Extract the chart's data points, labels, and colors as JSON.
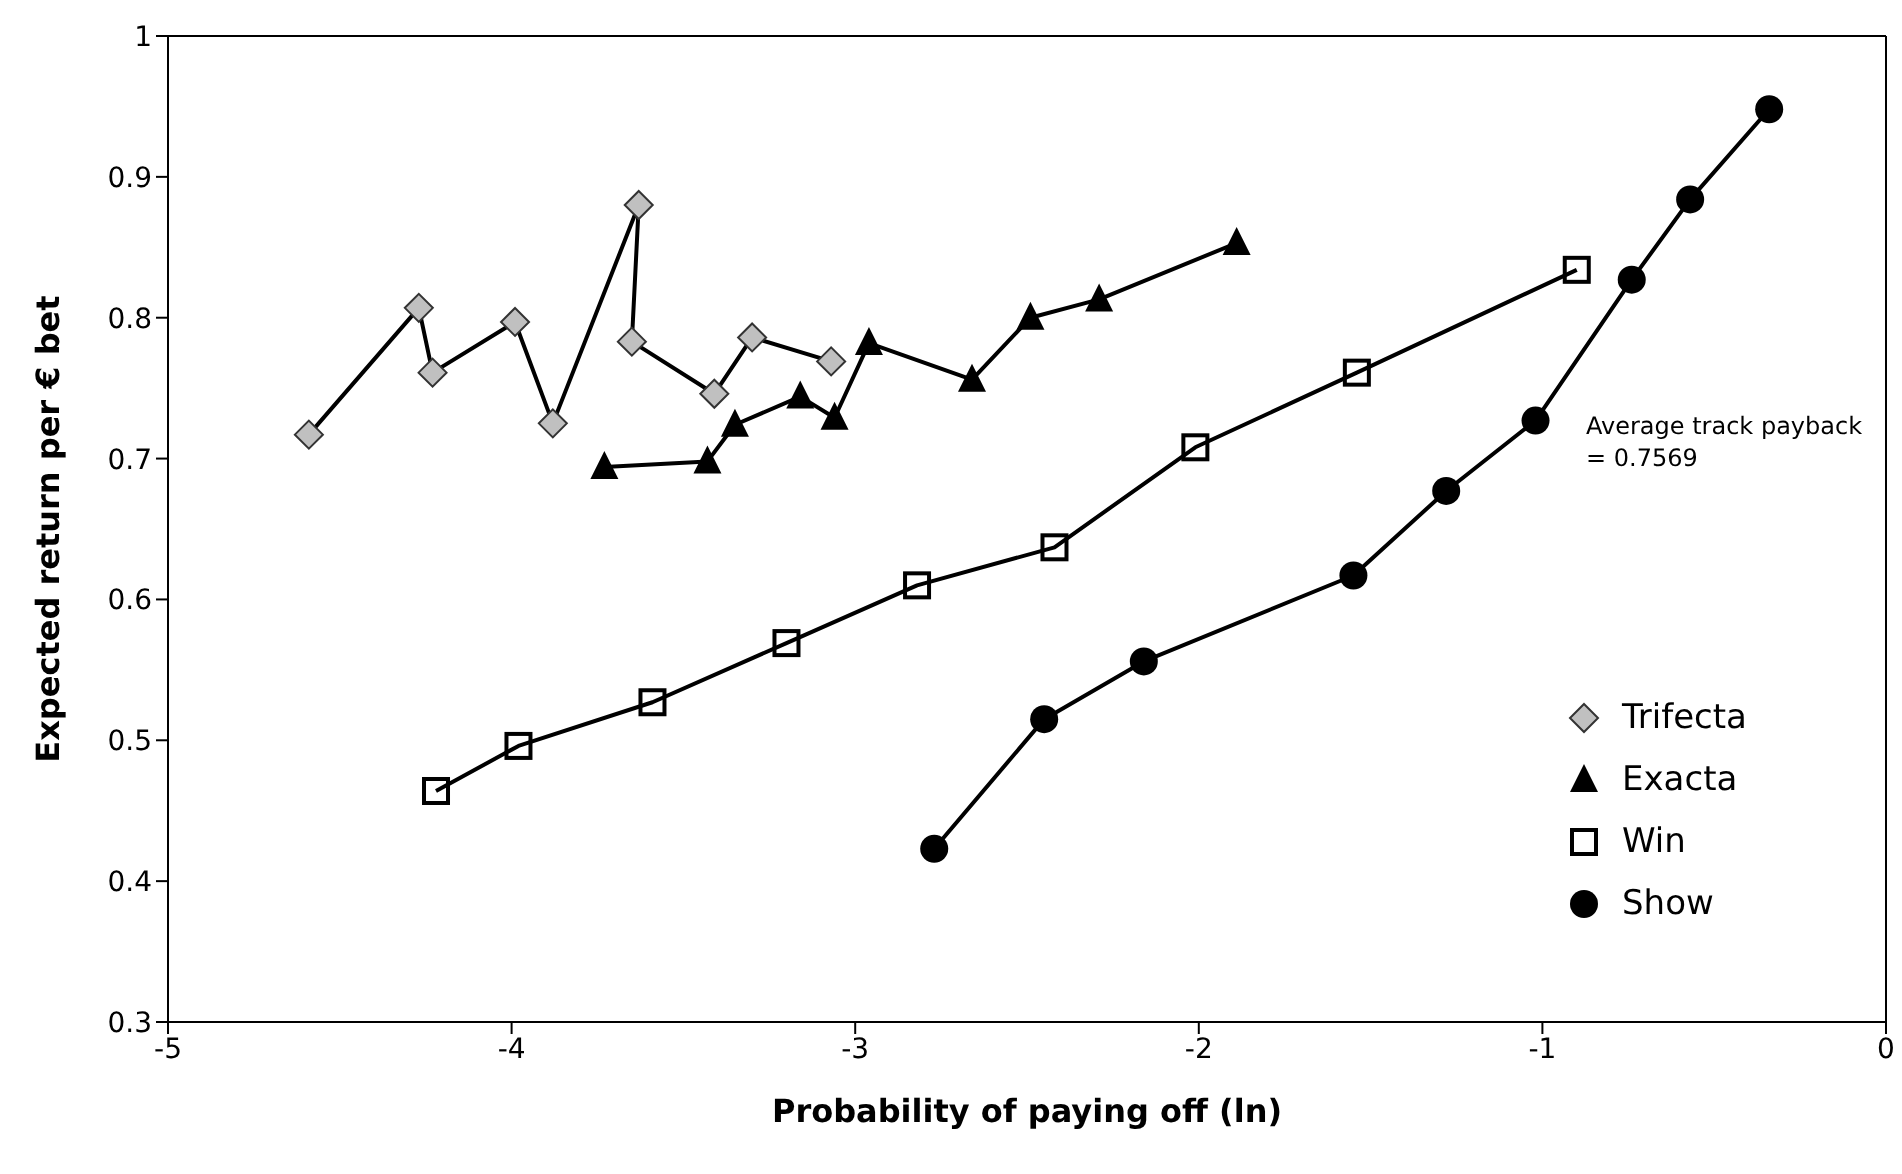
{
  "chart_data": {
    "type": "line",
    "xlabel": "Probability of paying off (ln)",
    "ylabel": "Expected return per € bet",
    "xlim": [
      -5,
      0
    ],
    "xticks": [
      -5,
      -4,
      -3,
      -2,
      -1,
      0
    ],
    "ylim": [
      0.3,
      1
    ],
    "yticks": [
      0.3,
      0.4,
      0.5,
      0.6,
      0.7,
      0.8,
      0.9,
      1
    ],
    "grid": false,
    "legend": "bottom right",
    "line_style": "solid",
    "annotations": [
      "Average track payback = 0.7569"
    ],
    "series": [
      {
        "name": "Trifecta",
        "color": "#c0c0c0",
        "marker": "diamond",
        "x": [
          -4.59,
          -4.27,
          -4.23,
          -3.99,
          -3.88,
          -3.63,
          -3.65,
          -3.41,
          -3.3,
          -3.07
        ],
        "values": [
          0.717,
          0.807,
          0.761,
          0.797,
          0.725,
          0.88,
          0.783,
          0.746,
          0.786,
          0.769
        ]
      },
      {
        "name": "Exacta",
        "color": "#000000",
        "marker": "triangle",
        "x": [
          -3.73,
          -3.43,
          -3.35,
          -3.16,
          -3.06,
          -2.96,
          -2.66,
          -2.49,
          -2.29,
          -1.89
        ],
        "values": [
          0.694,
          0.698,
          0.724,
          0.744,
          0.729,
          0.782,
          0.756,
          0.8,
          0.813,
          0.853
        ]
      },
      {
        "name": "Win",
        "color": "#000000",
        "marker": "square",
        "x": [
          -4.22,
          -3.98,
          -3.59,
          -3.2,
          -2.82,
          -2.42,
          -2.01,
          -1.54,
          -0.9
        ],
        "values": [
          0.464,
          0.496,
          0.527,
          0.569,
          0.61,
          0.637,
          0.708,
          0.761,
          0.834
        ]
      },
      {
        "name": "Show",
        "color": "#000000",
        "marker": "circle",
        "x": [
          -2.77,
          -2.45,
          -2.16,
          -1.55,
          -1.28,
          -1.02,
          -0.74,
          -0.57,
          -0.34
        ],
        "values": [
          0.423,
          0.515,
          0.556,
          0.617,
          0.677,
          0.727,
          0.827,
          0.884,
          0.948
        ]
      }
    ]
  }
}
